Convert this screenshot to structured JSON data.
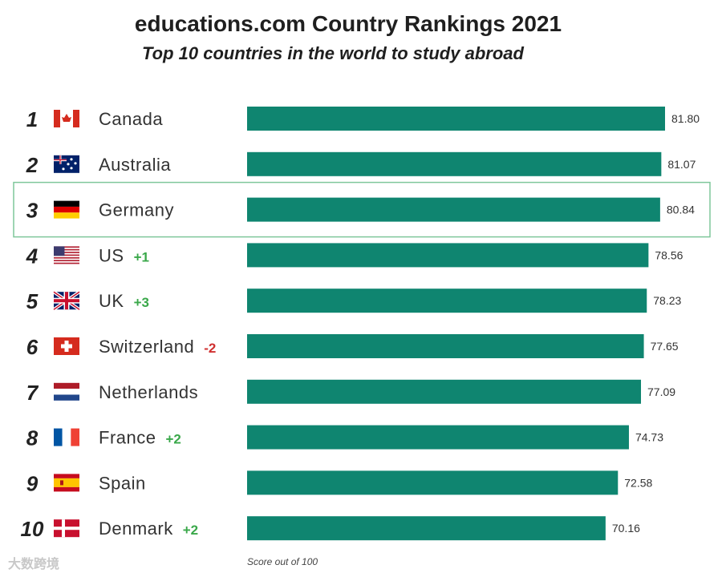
{
  "title": "educations.com Country Rankings 2021",
  "subtitle": "Top 10 countries in the world to study abroad",
  "footnote": "Score out of 100",
  "watermark": "大数跨境",
  "colors": {
    "bar": "#0f8570",
    "highlight_border": "#7fc79a"
  },
  "chart_data": {
    "type": "bar",
    "orientation": "horizontal",
    "title": "educations.com Country Rankings 2021",
    "subtitle": "Top 10 countries in the world to study abroad",
    "xlabel": "Score out of 100",
    "highlighted_rank": 3,
    "rows": [
      {
        "rank": "1",
        "country": "Canada",
        "change": "",
        "value": 81.8,
        "label": "81.80",
        "flag": "canada-flag"
      },
      {
        "rank": "2",
        "country": "Australia",
        "change": "",
        "value": 81.07,
        "label": "81.07",
        "flag": "australia-flag"
      },
      {
        "rank": "3",
        "country": "Germany",
        "change": "",
        "value": 80.84,
        "label": "80.84",
        "flag": "germany-flag"
      },
      {
        "rank": "4",
        "country": "US",
        "change": "+1",
        "value": 78.56,
        "label": "78.56",
        "flag": "us-flag"
      },
      {
        "rank": "5",
        "country": "UK",
        "change": "+3",
        "value": 78.23,
        "label": "78.23",
        "flag": "uk-flag"
      },
      {
        "rank": "6",
        "country": "Switzerland",
        "change": "-2",
        "value": 77.65,
        "label": "77.65",
        "flag": "switzerland-flag"
      },
      {
        "rank": "7",
        "country": "Netherlands",
        "change": "",
        "value": 77.09,
        "label": "77.09",
        "flag": "netherlands-flag"
      },
      {
        "rank": "8",
        "country": "France",
        "change": "+2",
        "value": 74.73,
        "label": "74.73",
        "flag": "france-flag"
      },
      {
        "rank": "9",
        "country": "Spain",
        "change": "",
        "value": 72.58,
        "label": "72.58",
        "flag": "spain-flag"
      },
      {
        "rank": "10",
        "country": "Denmark",
        "change": "+2",
        "value": 70.16,
        "label": "70.16",
        "flag": "denmark-flag"
      }
    ]
  }
}
